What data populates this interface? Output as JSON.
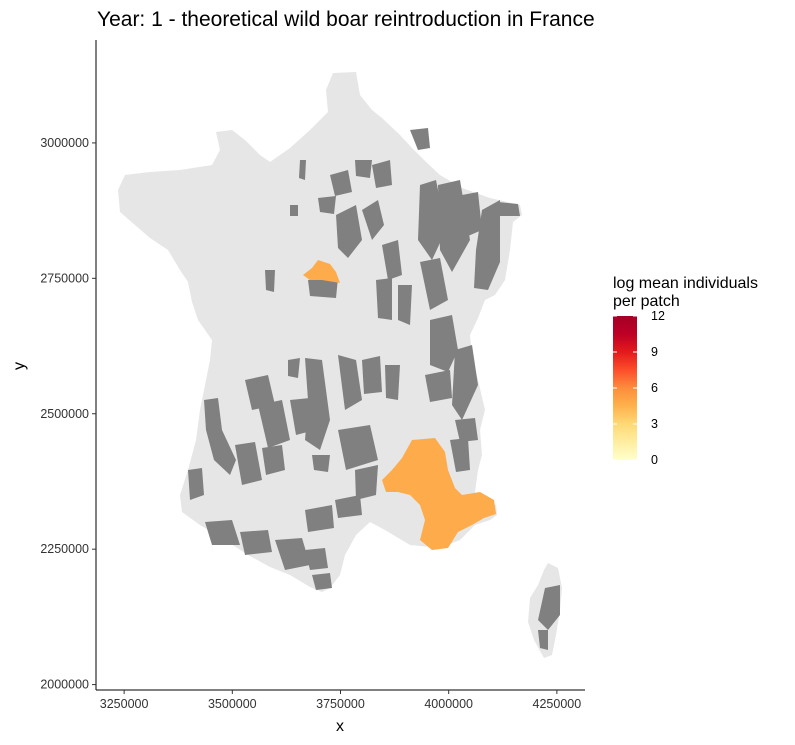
{
  "title": "Year: 1    - theoretical wild boar reintroduction in France",
  "map": {
    "x_label": "x",
    "y_label": "y",
    "x_ticks": [
      "3250000",
      "3500000",
      "3750000",
      "4000000",
      "4250000"
    ],
    "y_ticks": [
      "3000000",
      "2750000",
      "2500000",
      "2250000",
      "2000000"
    ],
    "x_tick_values": [
      3250000,
      3500000,
      3750000,
      4000000,
      4250000
    ],
    "y_tick_values": [
      3000000,
      2750000,
      2500000,
      2250000,
      2000000
    ],
    "xlim": [
      3185000,
      4315000
    ],
    "ylim": [
      1990000,
      3190000
    ],
    "colors": {
      "land": "#e6e6e6",
      "forest_habitat": "#808080",
      "occupied_patch": "#feab4c"
    }
  },
  "legend": {
    "title_line1": "log mean individuals",
    "title_line2": "per patch",
    "ticks": [
      "12",
      "9",
      "6",
      "3",
      "0"
    ],
    "tick_values": [
      12,
      9,
      6,
      3,
      0
    ],
    "range": [
      0,
      12
    ],
    "gradient": [
      "#ffffcc",
      "#ffeda0",
      "#fed976",
      "#feb24c",
      "#fd8d3c",
      "#fc4e2a",
      "#e31a1c",
      "#bd0026",
      "#a50026"
    ]
  }
}
